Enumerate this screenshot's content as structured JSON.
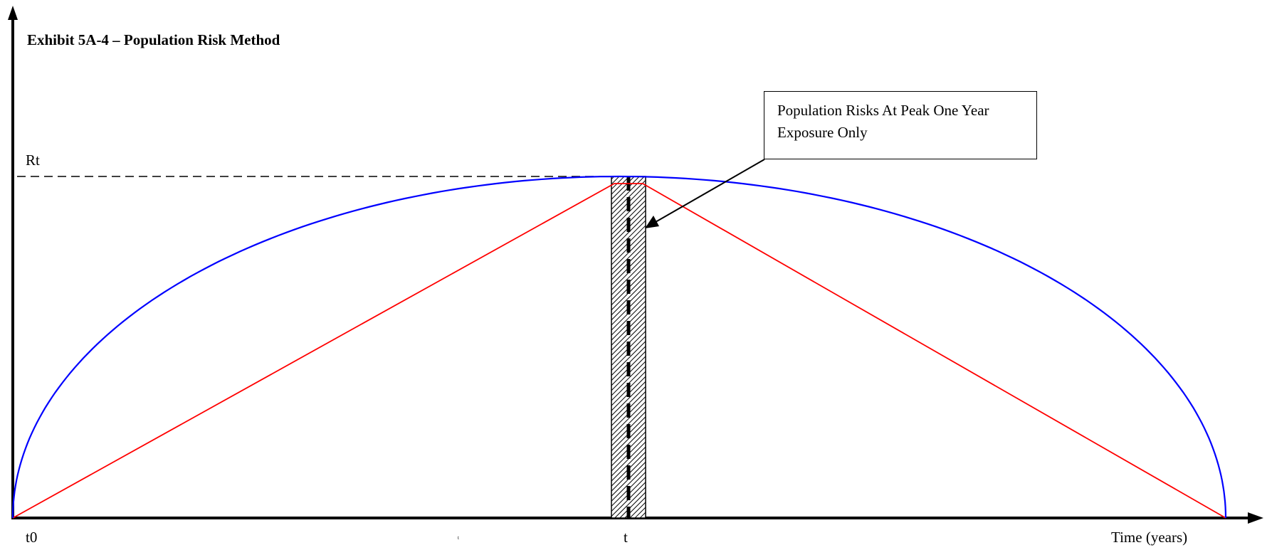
{
  "title": "Exhibit 5A-4 – Population Risk Method",
  "labels": {
    "y_peak": "Rt",
    "x_start": "t0",
    "x_mid": "t",
    "x_axis": "Time (years)",
    "x_small_tick": "t"
  },
  "callout": {
    "text": "Population Risks At Peak One Year Exposure Only"
  },
  "colors": {
    "curve": "#0000ff",
    "triangle": "#ff0000",
    "axis": "#000000",
    "hatch_bar": "#000000"
  }
}
